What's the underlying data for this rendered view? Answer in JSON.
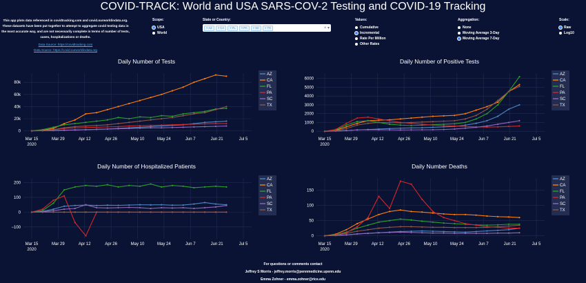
{
  "title": "COVID-TRACK: World and USA SARS-COV-2 Testing and COVID-19 Tracking",
  "intro": {
    "text": "This app plots data referenced in covidtracking.com and covid.ourworldindata.org. These datasets have been put together to attempt to aggregate covid testing data in the most accurate way, and are not necessarily complete in terms of number of tests, cases, hospitalizations or deaths.",
    "link1": "Data Source: https://covidtracking.com",
    "link2": "Data Source: https://covid.ourworldindata.org"
  },
  "controls": {
    "scope": {
      "label": "Scope:",
      "options": [
        "USA",
        "World"
      ],
      "selected": "USA"
    },
    "state": {
      "label": "State or Country:",
      "chips": [
        "AZ",
        "CA",
        "FL",
        "PA",
        "SC",
        "TX"
      ]
    },
    "values": {
      "label": "Values:",
      "options": [
        "Cumulative",
        "Incremental",
        "Rate Per Million",
        "Other Rates"
      ],
      "selected": "Incremental"
    },
    "aggregation": {
      "label": "Aggregation:",
      "options": [
        "None",
        "Moving Average 3-Day",
        "Moving Average 7-Day"
      ],
      "selected": "Moving Average 7-Day"
    },
    "scale": {
      "label": "Scale:",
      "options": [
        "Raw",
        "Log10"
      ],
      "selected": "Raw"
    }
  },
  "colors": {
    "AZ": "#4f86c6",
    "CA": "#ff7f0e",
    "FL": "#2ca02c",
    "PA": "#d62728",
    "SC": "#9467bd",
    "TX": "#8c564b"
  },
  "xticks": [
    "Mar 15",
    "Mar 29",
    "Apr 12",
    "Apr 26",
    "May 10",
    "May 24",
    "Jun 7",
    "Jun 21",
    "Jul 5"
  ],
  "xyear": "2020",
  "chart_data": [
    {
      "type": "line",
      "title": "Daily Number of Tests",
      "yticks": [
        "0",
        "20k",
        "40k",
        "60k",
        "80k"
      ],
      "ylim": [
        -5000,
        95000
      ],
      "legend": "right",
      "series": [
        {
          "name": "AZ",
          "values": [
            0,
            300,
            800,
            1200,
            1500,
            2000,
            2500,
            3000,
            4000,
            5000,
            6000,
            7000,
            8000,
            9000,
            10000,
            12000,
            14000,
            15000,
            16000
          ]
        },
        {
          "name": "CA",
          "values": [
            0,
            1000,
            4000,
            12000,
            18000,
            28000,
            30000,
            35000,
            40000,
            45000,
            50000,
            55000,
            60000,
            66000,
            72000,
            80000,
            86000,
            92000,
            90000
          ]
        },
        {
          "name": "FL",
          "values": [
            0,
            2000,
            6000,
            10000,
            12000,
            14000,
            16000,
            18000,
            22000,
            20000,
            23000,
            22000,
            25000,
            24000,
            28000,
            30000,
            32000,
            36000,
            37000
          ]
        },
        {
          "name": "PA",
          "values": [
            0,
            500,
            2000,
            4000,
            5000,
            5500,
            6000,
            6500,
            7000,
            8000,
            8500,
            9000,
            9500,
            10000,
            10500,
            11000,
            11500,
            12000,
            12000
          ]
        },
        {
          "name": "SC",
          "values": [
            0,
            200,
            500,
            1000,
            1500,
            2000,
            2500,
            3000,
            3500,
            4000,
            4500,
            5000,
            5000,
            5500,
            6000,
            6500,
            7000,
            7500,
            8000
          ]
        },
        {
          "name": "TX",
          "values": [
            0,
            500,
            2000,
            5000,
            7000,
            8000,
            9000,
            10000,
            12000,
            14000,
            16000,
            18000,
            20000,
            22000,
            25000,
            28000,
            30000,
            35000,
            40000
          ]
        }
      ]
    },
    {
      "type": "line",
      "title": "Daily Number of Positive Tests",
      "yticks": [
        "0",
        "1000",
        "2000",
        "3000",
        "4000",
        "5000",
        "6000"
      ],
      "ylim": [
        -300,
        6600
      ],
      "legend": "right",
      "series": [
        {
          "name": "AZ",
          "values": [
            0,
            20,
            80,
            150,
            200,
            250,
            300,
            350,
            380,
            400,
            450,
            500,
            550,
            700,
            900,
            1200,
            1700,
            2500,
            3000
          ]
        },
        {
          "name": "CA",
          "values": [
            0,
            100,
            500,
            900,
            1200,
            1250,
            1300,
            1400,
            1500,
            1600,
            1700,
            1750,
            1800,
            2000,
            2400,
            2800,
            3300,
            4500,
            5300
          ]
        },
        {
          "name": "FL",
          "values": [
            0,
            150,
            700,
            1100,
            1200,
            1000,
            800,
            700,
            650,
            700,
            750,
            800,
            850,
            1000,
            1400,
            2000,
            3000,
            4500,
            6200
          ]
        },
        {
          "name": "PA",
          "values": [
            0,
            200,
            900,
            1500,
            1600,
            1400,
            1200,
            1000,
            900,
            800,
            700,
            650,
            600,
            550,
            500,
            480,
            500,
            550,
            600
          ]
        },
        {
          "name": "SC",
          "values": [
            0,
            20,
            80,
            150,
            170,
            160,
            150,
            140,
            150,
            160,
            170,
            200,
            250,
            350,
            450,
            600,
            800,
            1000,
            1200
          ]
        },
        {
          "name": "TX",
          "values": [
            0,
            50,
            300,
            700,
            900,
            1000,
            1000,
            950,
            1000,
            1050,
            1100,
            1150,
            1200,
            1400,
            1800,
            2500,
            3500,
            4500,
            5100
          ]
        }
      ]
    },
    {
      "type": "line",
      "title": "Daily Number of Hospitalized Patients",
      "yticks": [
        "−100",
        "0",
        "100",
        "200"
      ],
      "ylim": [
        -180,
        230
      ],
      "legend": "right",
      "series": [
        {
          "name": "AZ",
          "values": [
            0,
            5,
            20,
            40,
            45,
            48,
            45,
            47,
            46,
            48,
            50,
            49,
            50,
            47,
            48,
            55,
            65,
            55,
            50
          ]
        },
        {
          "name": "CA",
          "values": [
            0,
            0,
            0,
            0,
            0,
            0,
            0,
            0,
            0,
            0,
            0,
            0,
            0,
            0,
            0,
            0,
            0,
            0,
            0
          ]
        },
        {
          "name": "FL",
          "values": [
            0,
            10,
            60,
            150,
            170,
            180,
            175,
            185,
            170,
            180,
            175,
            190,
            170,
            180,
            175,
            165,
            170,
            175,
            170
          ]
        },
        {
          "name": "PA",
          "values": [
            0,
            20,
            80,
            110,
            -70,
            -160,
            0,
            0,
            0,
            0,
            0,
            0,
            0,
            0,
            0,
            0,
            0,
            0,
            0
          ]
        },
        {
          "name": "SC",
          "values": [
            0,
            2,
            10,
            20,
            25,
            50,
            30,
            28,
            30,
            32,
            30,
            25,
            30,
            28,
            30,
            25,
            30,
            35,
            45
          ]
        },
        {
          "name": "TX",
          "values": [
            0,
            0,
            0,
            0,
            0,
            0,
            0,
            0,
            0,
            0,
            0,
            0,
            0,
            0,
            0,
            0,
            0,
            0,
            0
          ]
        }
      ]
    },
    {
      "type": "line",
      "title": "Daily Number Deaths",
      "yticks": [
        "0",
        "50",
        "100",
        "150"
      ],
      "ylim": [
        -10,
        190
      ],
      "legend": "right",
      "series": [
        {
          "name": "AZ",
          "values": [
            0,
            1,
            3,
            6,
            8,
            10,
            12,
            14,
            15,
            16,
            15,
            14,
            13,
            12,
            14,
            16,
            18,
            20,
            25
          ]
        },
        {
          "name": "CA",
          "values": [
            0,
            5,
            20,
            40,
            55,
            70,
            80,
            85,
            80,
            78,
            75,
            72,
            70,
            70,
            68,
            65,
            63,
            62,
            60
          ]
        },
        {
          "name": "FL",
          "values": [
            0,
            3,
            12,
            25,
            35,
            45,
            50,
            55,
            52,
            48,
            45,
            42,
            40,
            38,
            36,
            35,
            36,
            38,
            38
          ]
        },
        {
          "name": "PA",
          "values": [
            0,
            2,
            10,
            30,
            60,
            130,
            90,
            180,
            170,
            120,
            80,
            60,
            50,
            40,
            35,
            30,
            28,
            25,
            25
          ]
        },
        {
          "name": "SC",
          "values": [
            0,
            1,
            3,
            6,
            8,
            10,
            11,
            12,
            11,
            10,
            9,
            9,
            8,
            8,
            8,
            8,
            9,
            9,
            10
          ]
        },
        {
          "name": "TX",
          "values": [
            0,
            2,
            8,
            15,
            20,
            25,
            28,
            30,
            30,
            29,
            28,
            28,
            27,
            27,
            27,
            28,
            30,
            32,
            35
          ]
        }
      ]
    }
  ],
  "footer": {
    "line1": "For questions or comments contact",
    "line2": "Jeffrey S Morris - jeffrey.morris@pennmedicine.upenn.edu",
    "line3": "Emma Zohner - emma.zohner@rice.edu"
  }
}
